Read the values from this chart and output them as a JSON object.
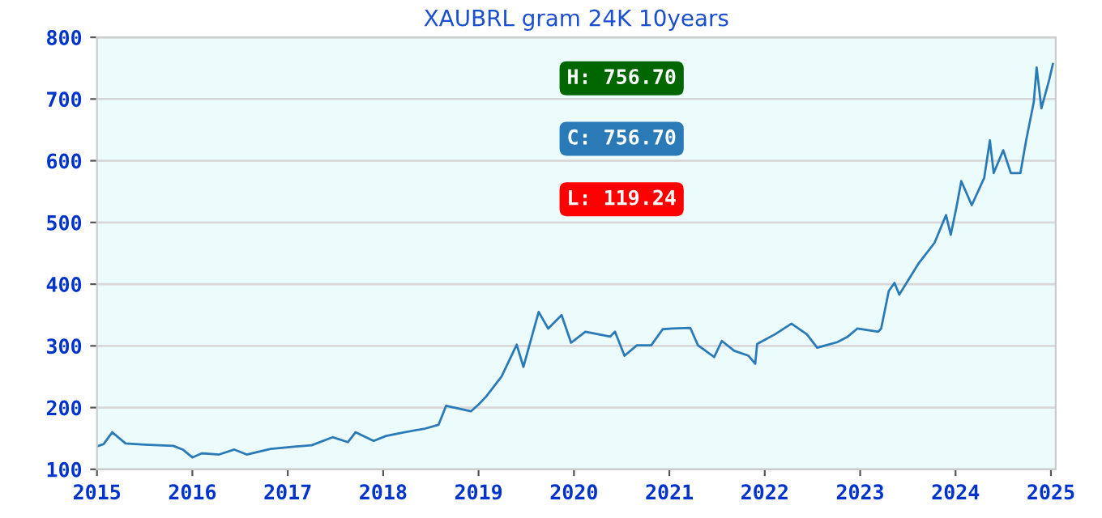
{
  "chart_data": {
    "type": "line",
    "title": "XAUBRL gram 24K 10years",
    "annotations": [
      "H: 756.70",
      "C: 756.70",
      "L: 119.24"
    ],
    "series": [
      {
        "color": "#2a7ab8",
        "x": [
          2015.0,
          2015.07,
          2015.16,
          2015.3,
          2015.5,
          2015.8,
          2015.9,
          2016.0,
          2016.1,
          2016.28,
          2016.44,
          2016.57,
          2016.82,
          2017.09,
          2017.25,
          2017.47,
          2017.63,
          2017.71,
          2017.9,
          2018.03,
          2018.22,
          2018.44,
          2018.58,
          2018.66,
          2018.92,
          2019.0,
          2019.08,
          2019.24,
          2019.4,
          2019.47,
          2019.63,
          2019.73,
          2019.87,
          2019.97,
          2020.12,
          2020.38,
          2020.43,
          2020.53,
          2020.66,
          2020.81,
          2020.93,
          2021.03,
          2021.22,
          2021.3,
          2021.47,
          2021.55,
          2021.68,
          2021.83,
          2021.9,
          2021.92,
          2022.11,
          2022.28,
          2022.44,
          2022.55,
          2022.76,
          2022.87,
          2022.97,
          2023.19,
          2023.22,
          2023.3,
          2023.36,
          2023.41,
          2023.61,
          2023.78,
          2023.9,
          2023.95,
          2024.01,
          2024.06,
          2024.17,
          2024.3,
          2024.36,
          2024.4,
          2024.5,
          2024.58,
          2024.68,
          2024.74,
          2024.82,
          2024.85,
          2024.9,
          2024.98,
          2025.02
        ],
        "values": [
          137,
          141,
          160,
          142,
          140,
          138,
          132,
          119.24,
          126,
          124,
          132,
          124,
          133,
          137,
          139,
          152,
          144,
          160,
          146,
          154,
          160,
          166,
          172,
          203,
          194,
          205,
          218,
          250,
          302,
          266,
          355,
          328,
          350,
          305,
          323,
          315,
          323,
          284,
          301,
          301,
          327,
          328,
          329,
          301,
          282,
          308,
          292,
          284,
          271,
          303,
          319,
          336,
          319,
          297,
          306,
          315,
          328,
          323,
          328,
          389,
          402,
          383,
          433,
          467,
          512,
          480,
          525,
          567,
          528,
          572,
          633,
          580,
          617,
          580,
          580,
          633,
          695,
          751,
          685,
          730,
          756.7
        ]
      }
    ],
    "xlim": [
      2015,
      2025.05
    ],
    "xticks": [
      2015,
      2016,
      2017,
      2018,
      2019,
      2020,
      2021,
      2022,
      2023,
      2024,
      2025
    ],
    "ylim": [
      100,
      800
    ],
    "yticks": [
      100,
      200,
      300,
      400,
      500,
      600,
      700,
      800
    ],
    "grid": "y",
    "legend": false,
    "marker": "none",
    "line_style": "solid"
  }
}
